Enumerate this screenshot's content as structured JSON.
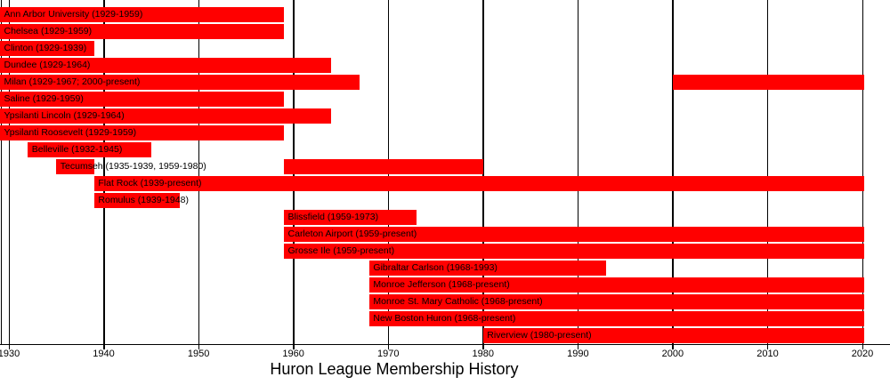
{
  "colors": {
    "bar": "#ff0000",
    "grid": "#000000",
    "axis": "#000000",
    "text": "#000000",
    "background": "#ffffff"
  },
  "chart_data": {
    "type": "bar",
    "variant": "gantt-timeline",
    "title": "Huron League Membership History",
    "xlabel": "",
    "ylabel": "",
    "legend": "none",
    "grid": "vertical-decade-lines",
    "x_axis": {
      "unit": "year",
      "range": [
        1929,
        2021
      ],
      "ticks": [
        1930,
        1940,
        1950,
        1960,
        1970,
        1980,
        1990,
        2000,
        2010,
        2020
      ]
    },
    "present_means": "through 2020 (right end of chart)",
    "rows": [
      {
        "label": "Ann Arbor University (1929-1959)",
        "segments": [
          [
            1929,
            1959
          ]
        ]
      },
      {
        "label": "Chelsea (1929-1959)",
        "segments": [
          [
            1929,
            1959
          ]
        ]
      },
      {
        "label": "Clinton (1929-1939)",
        "segments": [
          [
            1929,
            1939
          ]
        ]
      },
      {
        "label": "Dundee (1929-1964)",
        "segments": [
          [
            1929,
            1964
          ]
        ]
      },
      {
        "label": "Milan (1929-1967; 2000-present)",
        "segments": [
          [
            1929,
            1967
          ],
          [
            2000,
            "present"
          ]
        ]
      },
      {
        "label": "Saline (1929-1959)",
        "segments": [
          [
            1929,
            1959
          ]
        ]
      },
      {
        "label": "Ypsilanti Lincoln (1929-1964)",
        "segments": [
          [
            1929,
            1964
          ]
        ]
      },
      {
        "label": "Ypsilanti Roosevelt (1929-1959)",
        "segments": [
          [
            1929,
            1959
          ]
        ]
      },
      {
        "label": "Belleville (1932-1945)",
        "segments": [
          [
            1932,
            1945
          ]
        ]
      },
      {
        "label": "Tecumseh (1935-1939, 1959-1980)",
        "segments": [
          [
            1935,
            1939
          ],
          [
            1959,
            1980
          ]
        ]
      },
      {
        "label": "Flat Rock (1939-present)",
        "segments": [
          [
            1939,
            "present"
          ]
        ]
      },
      {
        "label": "Romulus (1939-1948)",
        "segments": [
          [
            1939,
            1948
          ]
        ]
      },
      {
        "label": "Blissfield (1959-1973)",
        "segments": [
          [
            1959,
            1973
          ]
        ]
      },
      {
        "label": "Carleton Airport (1959-present)",
        "segments": [
          [
            1959,
            "present"
          ]
        ]
      },
      {
        "label": "Grosse Ile (1959-present)",
        "segments": [
          [
            1959,
            "present"
          ]
        ]
      },
      {
        "label": "Gibraltar Carlson (1968-1993)",
        "segments": [
          [
            1968,
            1993
          ]
        ]
      },
      {
        "label": "Monroe Jefferson (1968-present)",
        "segments": [
          [
            1968,
            "present"
          ]
        ]
      },
      {
        "label": "Monroe St. Mary Catholic (1968-present)",
        "segments": [
          [
            1968,
            "present"
          ]
        ]
      },
      {
        "label": "New Boston Huron (1968-present)",
        "segments": [
          [
            1968,
            "present"
          ]
        ]
      },
      {
        "label": "Riverview (1980-present)",
        "segments": [
          [
            1980,
            "present"
          ]
        ]
      }
    ]
  }
}
